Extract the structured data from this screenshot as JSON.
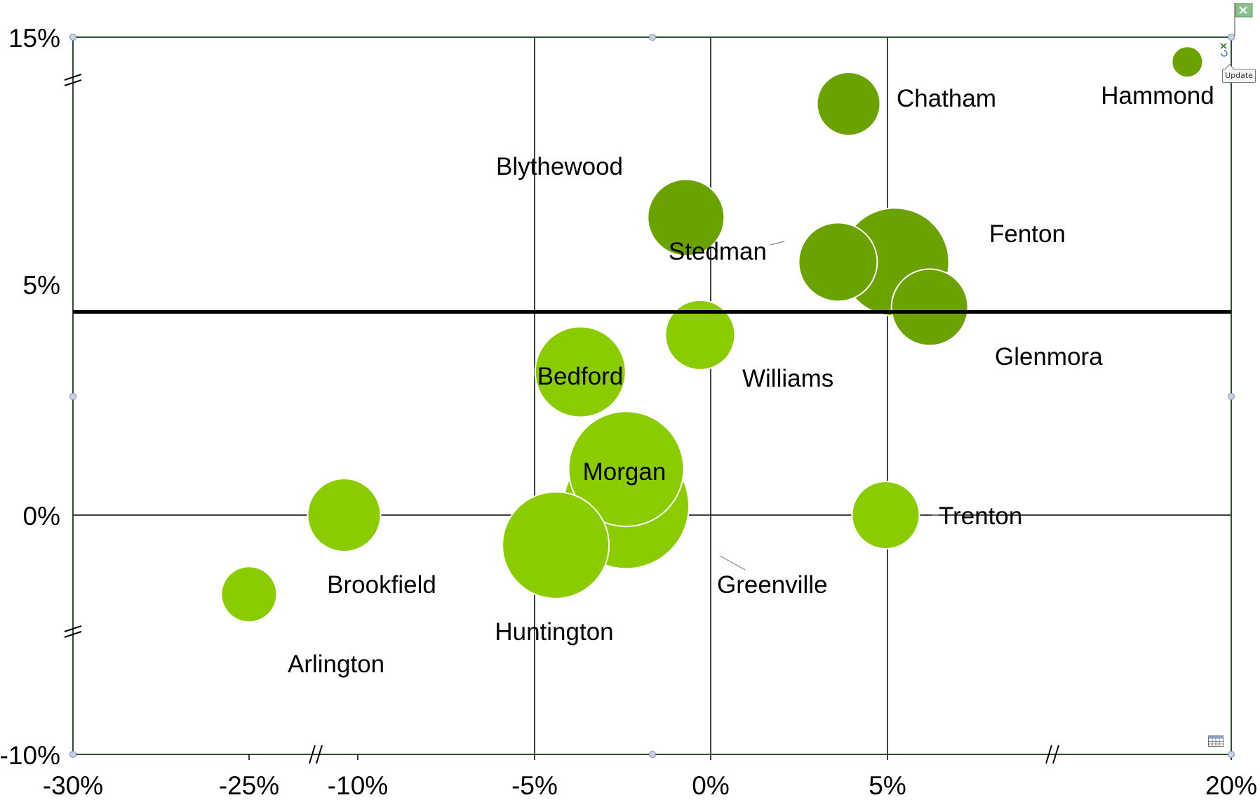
{
  "chart_data": {
    "type": "bubble",
    "x_ticks": [
      "-30%",
      "-25%",
      "-10%",
      "-5%",
      "0%",
      "5%",
      "20%"
    ],
    "y_ticks": [
      "15%",
      "5%",
      "0%",
      "-10%"
    ],
    "reference_line_y": 4.4,
    "bubbles": [
      {
        "label": "Hammond",
        "x": 18.0,
        "y": 14.0,
        "size": 10,
        "shade": "dark"
      },
      {
        "label": "Chatham",
        "x": 3.9,
        "y": 12.3,
        "size": 56,
        "shade": "dark"
      },
      {
        "label": "Blythewood",
        "x": -0.7,
        "y": 7.7,
        "size": 75,
        "shade": "dark"
      },
      {
        "label": "Fenton",
        "x": 5.3,
        "y": 5.9,
        "size": 120,
        "shade": "dark"
      },
      {
        "label": "Stedman",
        "x": 3.6,
        "y": 5.9,
        "size": 78,
        "shade": "dark"
      },
      {
        "label": "Glenmora",
        "x": 6.7,
        "y": 4.5,
        "size": 75,
        "shade": "dark"
      },
      {
        "label": "Williams",
        "x": -0.3,
        "y": 3.9,
        "size": 65,
        "shade": "light"
      },
      {
        "label": "Bedford",
        "x": -3.7,
        "y": 3.1,
        "size": 95,
        "shade": "light"
      },
      {
        "label": "Morgan",
        "x": -2.4,
        "y": 1.0,
        "size": 130,
        "shade": "light"
      },
      {
        "label": "Greenville",
        "x": -2.4,
        "y": 0.2,
        "size": 145,
        "shade": "light"
      },
      {
        "label": "Huntington",
        "x": -4.4,
        "y": -1.9,
        "size": 118,
        "shade": "light"
      },
      {
        "label": "Brookfield",
        "x": -11.3,
        "y": 0.0,
        "size": 70,
        "shade": "light"
      },
      {
        "label": "Trenton",
        "x": 4.95,
        "y": 0.0,
        "size": 62,
        "shade": "light"
      },
      {
        "label": "Arlington",
        "x": -25.0,
        "y": -5.0,
        "size": 45,
        "shade": "light"
      }
    ]
  },
  "colors": {
    "dark": "#6ca200",
    "light": "#8bcc00",
    "axis": "#2f4f2f",
    "grid": "#000000"
  },
  "ui": {
    "update_button": "Update"
  },
  "icons": {
    "flag": "excel-flag-icon",
    "table": "data-table-icon"
  }
}
